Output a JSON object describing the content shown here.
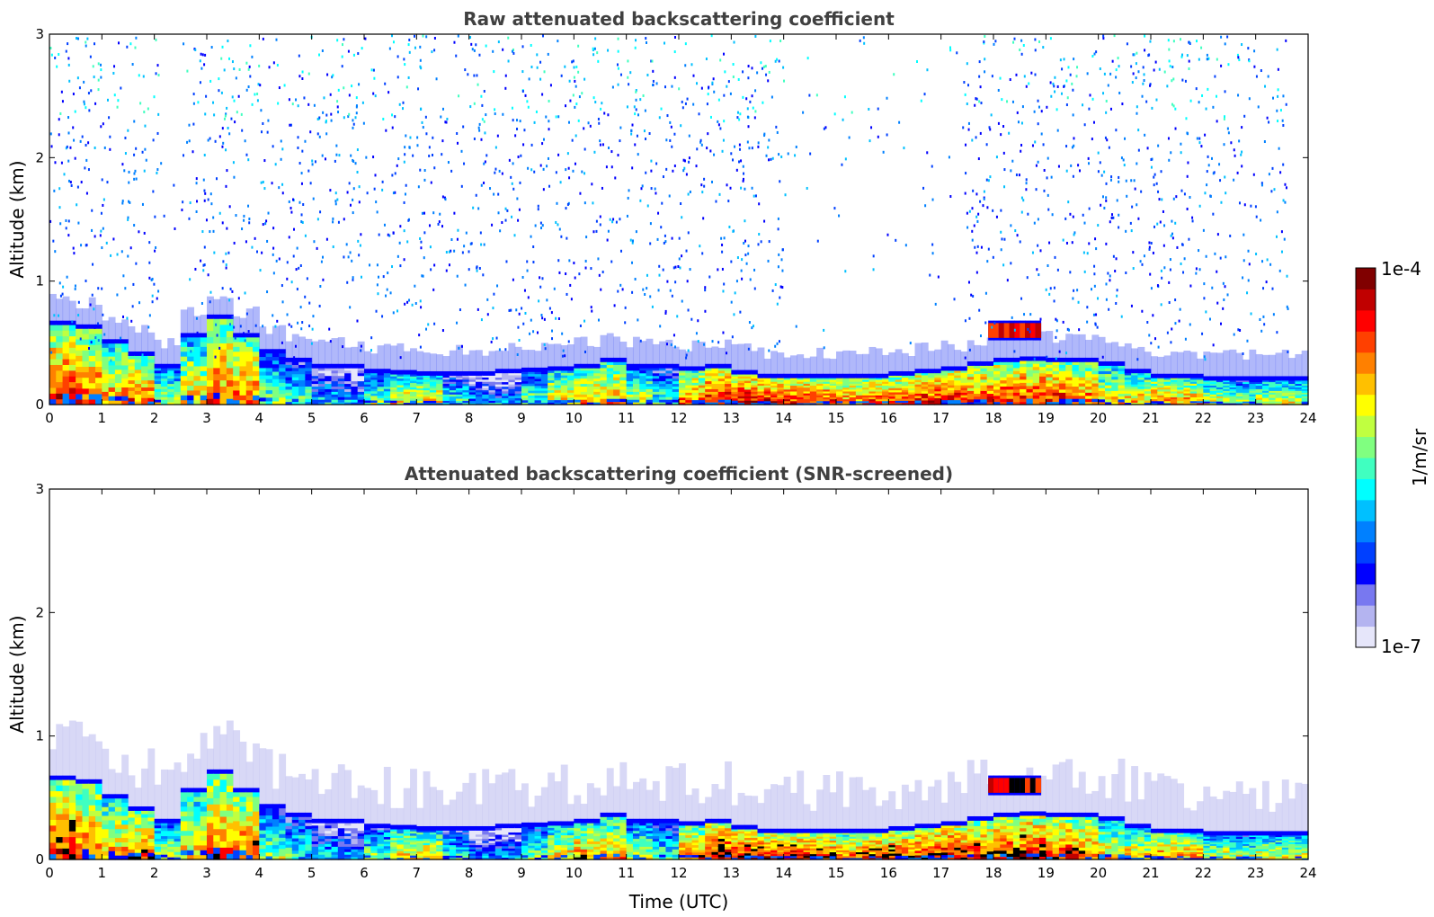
{
  "chart_data": [
    {
      "type": "heatmap",
      "title": "Raw attenuated backscattering coefficient",
      "xlabel": "",
      "ylabel": "Altitude (km)",
      "xlim": [
        0,
        24
      ],
      "ylim": [
        0,
        3
      ],
      "x_ticks": [
        "0",
        "1",
        "2",
        "3",
        "4",
        "5",
        "6",
        "7",
        "8",
        "9",
        "10",
        "11",
        "12",
        "13",
        "14",
        "15",
        "16",
        "17",
        "18",
        "19",
        "20",
        "21",
        "22",
        "23",
        "24"
      ],
      "y_ticks": [
        "0",
        "1",
        "2",
        "3"
      ],
      "scale": "log",
      "color_range": [
        1e-07,
        0.0001
      ],
      "layer_top_km": [
        0.65,
        0.62,
        0.5,
        0.4,
        0.3,
        0.55,
        0.7,
        0.55,
        0.42,
        0.35,
        0.3,
        0.3,
        0.26,
        0.25,
        0.24,
        0.24,
        0.24,
        0.26,
        0.27,
        0.28,
        0.3,
        0.35,
        0.3,
        0.3,
        0.28,
        0.3,
        0.25,
        0.22,
        0.22,
        0.22,
        0.22,
        0.22,
        0.24,
        0.26,
        0.28,
        0.32,
        0.35,
        0.36,
        0.35,
        0.35,
        0.32,
        0.26,
        0.22,
        0.22,
        0.2,
        0.2,
        0.2,
        0.2
      ],
      "layer_intensity": [
        0.85,
        0.8,
        0.75,
        0.8,
        0.6,
        0.7,
        0.8,
        0.8,
        0.55,
        0.5,
        0.4,
        0.35,
        0.55,
        0.7,
        0.7,
        0.5,
        0.35,
        0.35,
        0.55,
        0.7,
        0.75,
        0.75,
        0.6,
        0.5,
        0.8,
        0.9,
        0.9,
        0.9,
        0.88,
        0.85,
        0.8,
        0.85,
        0.85,
        0.88,
        0.9,
        0.85,
        0.85,
        0.88,
        0.85,
        0.8,
        0.7,
        0.7,
        0.8,
        0.75,
        0.65,
        0.6,
        0.65,
        0.65
      ],
      "elevated_layer": {
        "x_start": 17.9,
        "x_end": 18.9,
        "altitude_km": 0.6,
        "thickness_km": 0.12,
        "intensity": 0.88
      }
    },
    {
      "type": "heatmap",
      "title": "Attenuated backscattering coefficient (SNR-screened)",
      "xlabel": "Time (UTC)",
      "ylabel": "Altitude (km)",
      "xlim": [
        0,
        24
      ],
      "ylim": [
        0,
        3
      ],
      "x_ticks": [
        "0",
        "1",
        "2",
        "3",
        "4",
        "5",
        "6",
        "7",
        "8",
        "9",
        "10",
        "11",
        "12",
        "13",
        "14",
        "15",
        "16",
        "17",
        "18",
        "19",
        "20",
        "21",
        "22",
        "23",
        "24"
      ],
      "y_ticks": [
        "0",
        "1",
        "2",
        "3"
      ],
      "scale": "log",
      "color_range": [
        1e-07,
        0.0001
      ],
      "layer_top_km": [
        0.65,
        0.62,
        0.5,
        0.4,
        0.3,
        0.55,
        0.7,
        0.55,
        0.42,
        0.35,
        0.3,
        0.3,
        0.26,
        0.25,
        0.24,
        0.24,
        0.24,
        0.26,
        0.27,
        0.28,
        0.3,
        0.35,
        0.3,
        0.3,
        0.28,
        0.3,
        0.25,
        0.22,
        0.22,
        0.22,
        0.22,
        0.22,
        0.24,
        0.26,
        0.28,
        0.32,
        0.35,
        0.36,
        0.35,
        0.35,
        0.32,
        0.26,
        0.22,
        0.22,
        0.2,
        0.2,
        0.2,
        0.2
      ],
      "layer_intensity": [
        0.85,
        0.8,
        0.75,
        0.8,
        0.6,
        0.7,
        0.8,
        0.8,
        0.55,
        0.5,
        0.4,
        0.35,
        0.55,
        0.7,
        0.7,
        0.5,
        0.35,
        0.35,
        0.55,
        0.7,
        0.75,
        0.75,
        0.6,
        0.5,
        0.8,
        0.9,
        0.9,
        0.9,
        0.88,
        0.85,
        0.8,
        0.85,
        0.85,
        0.88,
        0.9,
        0.85,
        0.85,
        0.88,
        0.85,
        0.8,
        0.7,
        0.7,
        0.8,
        0.75,
        0.65,
        0.6,
        0.65,
        0.65
      ],
      "elevated_layer": {
        "x_start": 17.9,
        "x_end": 18.9,
        "altitude_km": 0.6,
        "thickness_km": 0.12,
        "intensity": 0.88
      }
    }
  ],
  "colorbar": {
    "max_label": "1e-4",
    "min_label": "1e-7",
    "unit_label": "1/m/sr",
    "colors": [
      "#e6e6fa",
      "#b4b4f0",
      "#7878f0",
      "#0000ff",
      "#0040ff",
      "#0080ff",
      "#00c0ff",
      "#00ffff",
      "#40ffc0",
      "#80ff80",
      "#c0ff40",
      "#ffff00",
      "#ffc000",
      "#ff8000",
      "#ff4000",
      "#ff0000",
      "#c00000",
      "#800000"
    ]
  }
}
